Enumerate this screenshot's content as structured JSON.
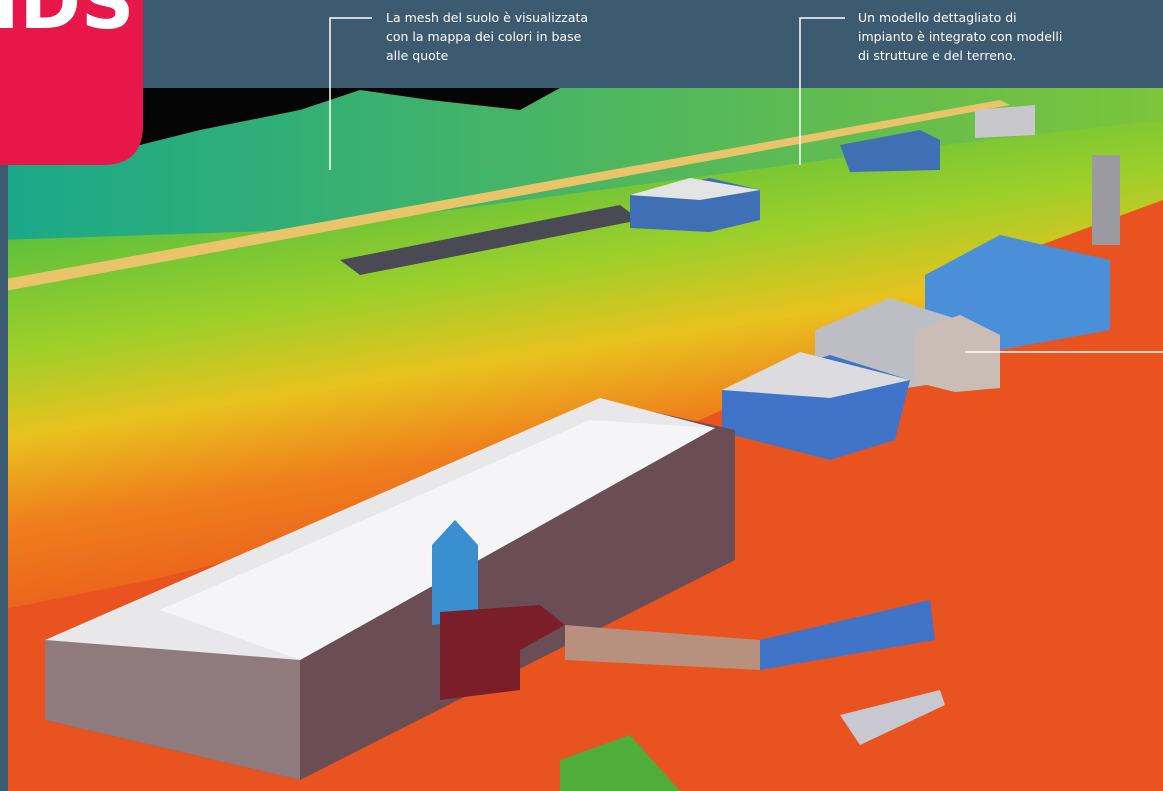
{
  "logo": "IDS",
  "annotations": [
    {
      "lines": [
        "La mesh del suolo è visualizzata",
        "con la mappa dei colori in base",
        "alle quote"
      ]
    },
    {
      "lines": [
        "Un modello dettagliato di",
        "impianto è integrato con modelli",
        "di strutture e del terreno."
      ]
    }
  ]
}
